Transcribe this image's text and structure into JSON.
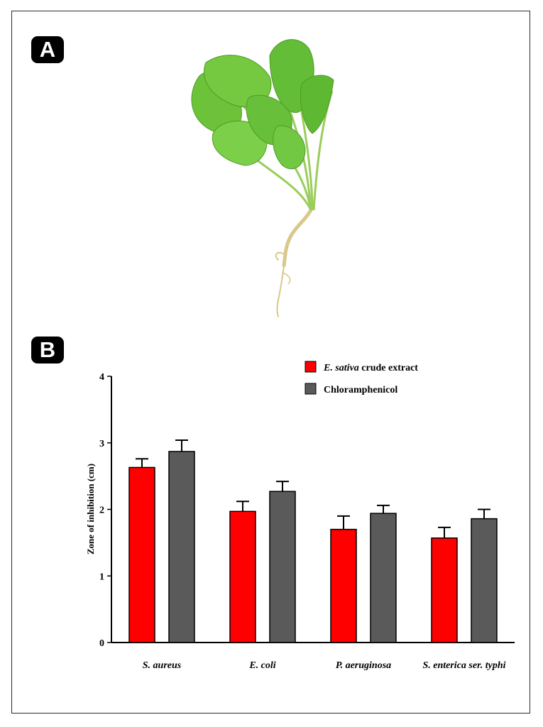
{
  "panels": {
    "a_label": "A",
    "b_label": "B"
  },
  "photo": {
    "subject": "leafy-plant-with-root"
  },
  "colors": {
    "series1": "#ff0000",
    "series2": "#5a5a5a",
    "axis": "#000000",
    "leaf": "#6cc33a",
    "root": "#d9c88a"
  },
  "chart_data": {
    "type": "bar",
    "title": "",
    "xlabel": "",
    "ylabel": "Zone of inhibition (cm)",
    "ylim": [
      0,
      4
    ],
    "yticks": [
      "0",
      "1",
      "2",
      "3",
      "4"
    ],
    "grid": false,
    "legend_position": "top-right",
    "categories": [
      "S. aureus",
      "E. coli",
      "P. aeruginosa",
      "S. enterica ser. typhi"
    ],
    "series": [
      {
        "name_italic": "E. sativa",
        "name_rest": " crude extract",
        "color": "#ff0000",
        "values": [
          2.63,
          1.97,
          1.7,
          1.57
        ],
        "errors": [
          0.13,
          0.15,
          0.2,
          0.16
        ]
      },
      {
        "name": "Chloramphenicol",
        "color": "#5a5a5a",
        "values": [
          2.87,
          2.27,
          1.94,
          1.86
        ],
        "errors": [
          0.17,
          0.15,
          0.12,
          0.14
        ]
      }
    ]
  }
}
